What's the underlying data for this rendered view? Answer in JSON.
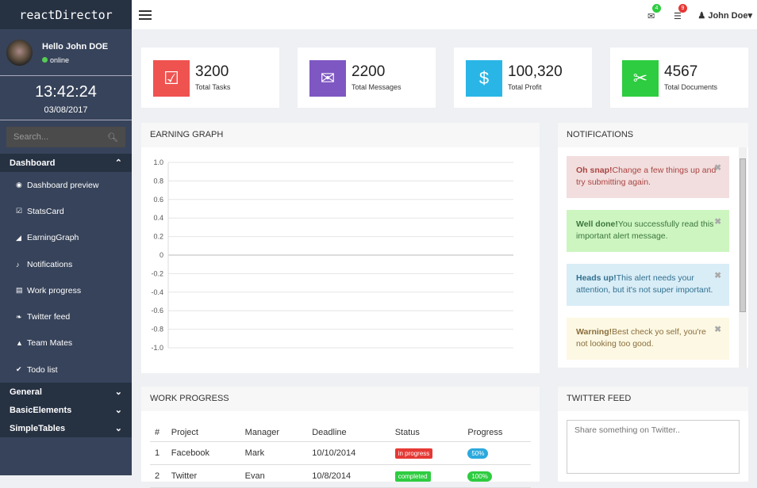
{
  "brand": "reactDirector",
  "user": {
    "greeting": "Hello John DOE",
    "status": "online"
  },
  "clock": {
    "time": "13:42:24",
    "date": "03/08/2017"
  },
  "search": {
    "placeholder": "Search..."
  },
  "nav": {
    "dashboard": "Dashboard",
    "items": [
      {
        "label": "Dashboard preview",
        "icon": "eye-icon"
      },
      {
        "label": "StatsCard",
        "icon": "check-square-icon"
      },
      {
        "label": "EarningGraph",
        "icon": "area-chart-icon"
      },
      {
        "label": "Notifications",
        "icon": "bell-icon"
      },
      {
        "label": "Work progress",
        "icon": "briefcase-icon"
      },
      {
        "label": "Twitter feed",
        "icon": "twitter-icon"
      },
      {
        "label": "Team Mates",
        "icon": "user-icon"
      },
      {
        "label": "Todo list",
        "icon": "check-icon"
      }
    ],
    "general": "General",
    "basic": "BasicElements",
    "tables": "SimpleTables"
  },
  "topbar": {
    "mail_count": "4",
    "list_count": "9",
    "user": "John Doe"
  },
  "stats": [
    {
      "value": "3200",
      "label": "Total Tasks",
      "color": "#ef5350",
      "icon": "check-square-icon"
    },
    {
      "value": "2200",
      "label": "Total Messages",
      "color": "#7e57c2",
      "icon": "envelope-icon"
    },
    {
      "value": "100,320",
      "label": "Total Profit",
      "color": "#29b6e6",
      "icon": "dollar-icon"
    },
    {
      "value": "4567",
      "label": "Total Documents",
      "color": "#2ecc40",
      "icon": "paperclip-icon"
    }
  ],
  "earning": {
    "title": "EARNING GRAPH"
  },
  "chart_data": {
    "type": "line",
    "ylim": [
      -1,
      1
    ],
    "yticks": [
      "1.0",
      "0.8",
      "0.6",
      "0.4",
      "0.2",
      "0",
      "-0.2",
      "-0.4",
      "-0.6",
      "-0.8",
      "-1.0"
    ],
    "series": [],
    "grid": true
  },
  "notifications": {
    "title": "NOTIFICATIONS",
    "alerts": [
      {
        "strong": "Oh snap!",
        "text": "Change a few things up and try submitting again.",
        "bg": "#f2dede",
        "fg": "#a94442"
      },
      {
        "strong": "Well done!",
        "text": "You successfully read this important alert message.",
        "bg": "#cdf5c0",
        "fg": "#3c763d"
      },
      {
        "strong": "Heads up!",
        "text": "This alert needs your attention, but it's not super important.",
        "bg": "#d9edf7",
        "fg": "#31708f"
      },
      {
        "strong": "Warning!",
        "text": "Best check yo self, you're not looking too good.",
        "bg": "#fcf8e3",
        "fg": "#8a6d3b"
      }
    ]
  },
  "work": {
    "title": "WORK PROGRESS",
    "headers": [
      "#",
      "Project",
      "Manager",
      "Deadline",
      "Status",
      "Progress"
    ],
    "rows": [
      {
        "n": "1",
        "project": "Facebook",
        "manager": "Mark",
        "deadline": "10/10/2014",
        "status": "in progress",
        "status_color": "#e53935",
        "progress": "50%"
      },
      {
        "n": "2",
        "project": "Twitter",
        "manager": "Evan",
        "deadline": "10/8/2014",
        "status": "completed",
        "status_color": "#2ecc40",
        "progress": "100%"
      }
    ]
  },
  "twitter": {
    "title": "TWITTER FEED",
    "placeholder": "Share something on Twitter.."
  }
}
